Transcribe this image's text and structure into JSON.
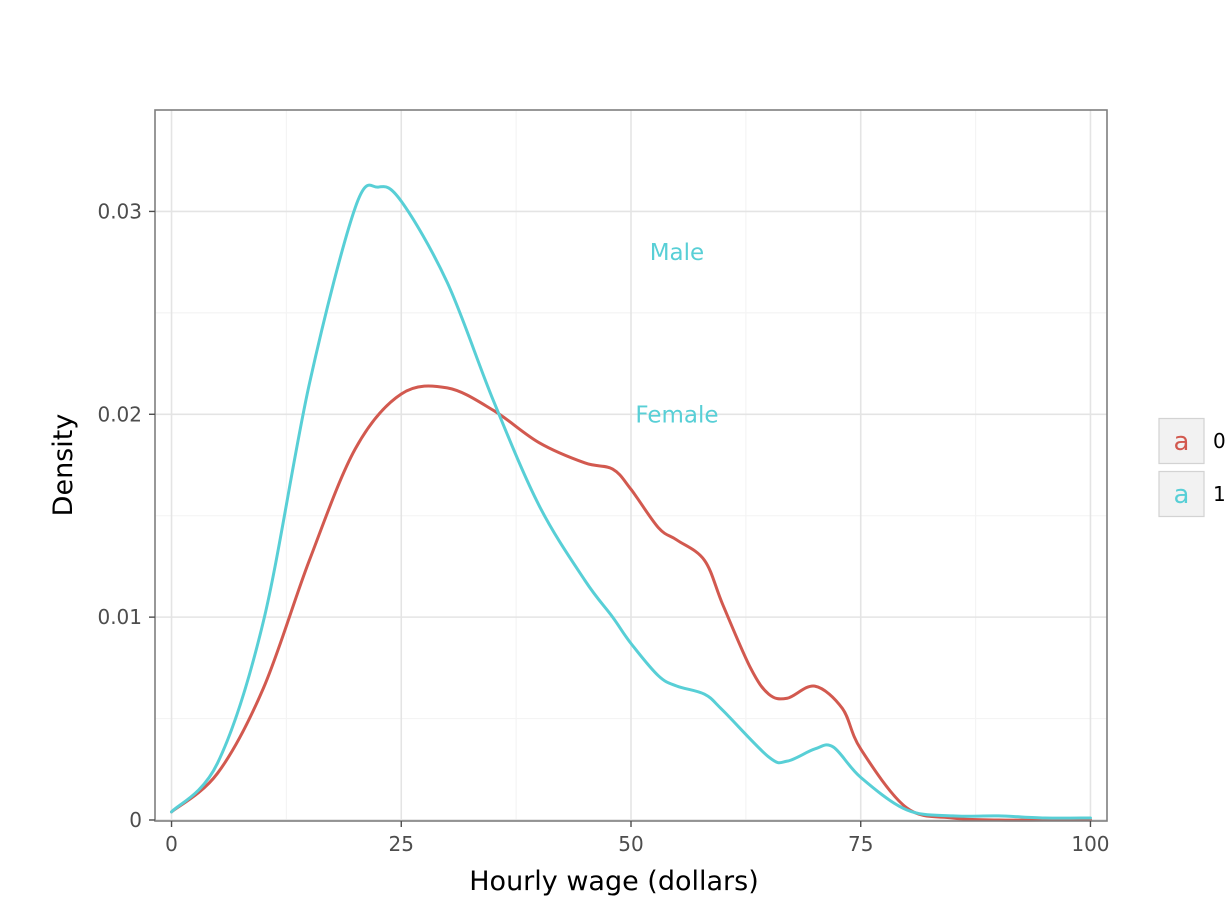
{
  "chart_data": {
    "type": "line",
    "title": "",
    "xlabel": "Hourly wage (dollars)",
    "ylabel": "Density",
    "xlim": [
      -1.8,
      101.8
    ],
    "ylim": [
      -5e-05,
      0.035
    ],
    "x_ticks": [
      0,
      25,
      50,
      75,
      100
    ],
    "x_tick_labels": [
      "0",
      "25",
      "50",
      "75",
      "100"
    ],
    "y_ticks": [
      0,
      0.01,
      0.02,
      0.03
    ],
    "y_tick_labels": [
      "0",
      "0.01",
      "0.02",
      "0.03"
    ],
    "grid": true,
    "legend_position": "right",
    "legend": [
      {
        "key": "a",
        "label": "0",
        "color": "#d2594f"
      },
      {
        "key": "a",
        "label": "1",
        "color": "#58cfd6"
      }
    ],
    "annotations": [
      {
        "text": "Male",
        "x": 55,
        "y": 0.028,
        "color": "#58cfd6"
      },
      {
        "text": "Female",
        "x": 55,
        "y": 0.02,
        "color": "#58cfd6"
      }
    ],
    "series": [
      {
        "name": "0",
        "color": "#d2594f",
        "x": [
          0,
          5,
          10,
          15,
          20,
          25,
          30,
          35,
          40,
          45,
          48,
          50,
          53,
          55,
          58,
          60,
          63,
          65,
          67,
          70,
          73,
          75,
          80,
          85,
          90,
          95,
          100
        ],
        "y": [
          0.0004,
          0.0023,
          0.0065,
          0.0128,
          0.0183,
          0.021,
          0.0213,
          0.0202,
          0.0186,
          0.0176,
          0.0173,
          0.0163,
          0.0144,
          0.0138,
          0.0128,
          0.0106,
          0.0075,
          0.0062,
          0.006,
          0.0066,
          0.0055,
          0.0035,
          0.0006,
          0.0001,
          0.0,
          0.0,
          0.0
        ]
      },
      {
        "name": "1",
        "color": "#58cfd6",
        "x": [
          0,
          5,
          10,
          15,
          20,
          22.5,
          25,
          30,
          35,
          40,
          45,
          48,
          50,
          53,
          55,
          58,
          60,
          65,
          67,
          70,
          72,
          75,
          80,
          85,
          90,
          95,
          100
        ],
        "y": [
          0.0004,
          0.0028,
          0.0098,
          0.0215,
          0.0302,
          0.0312,
          0.0305,
          0.0265,
          0.0207,
          0.0155,
          0.0118,
          0.01,
          0.0087,
          0.0071,
          0.0066,
          0.0062,
          0.0054,
          0.0031,
          0.0029,
          0.0035,
          0.0036,
          0.0021,
          0.0005,
          0.0002,
          0.0002,
          0.0001,
          0.0001
        ]
      }
    ]
  }
}
